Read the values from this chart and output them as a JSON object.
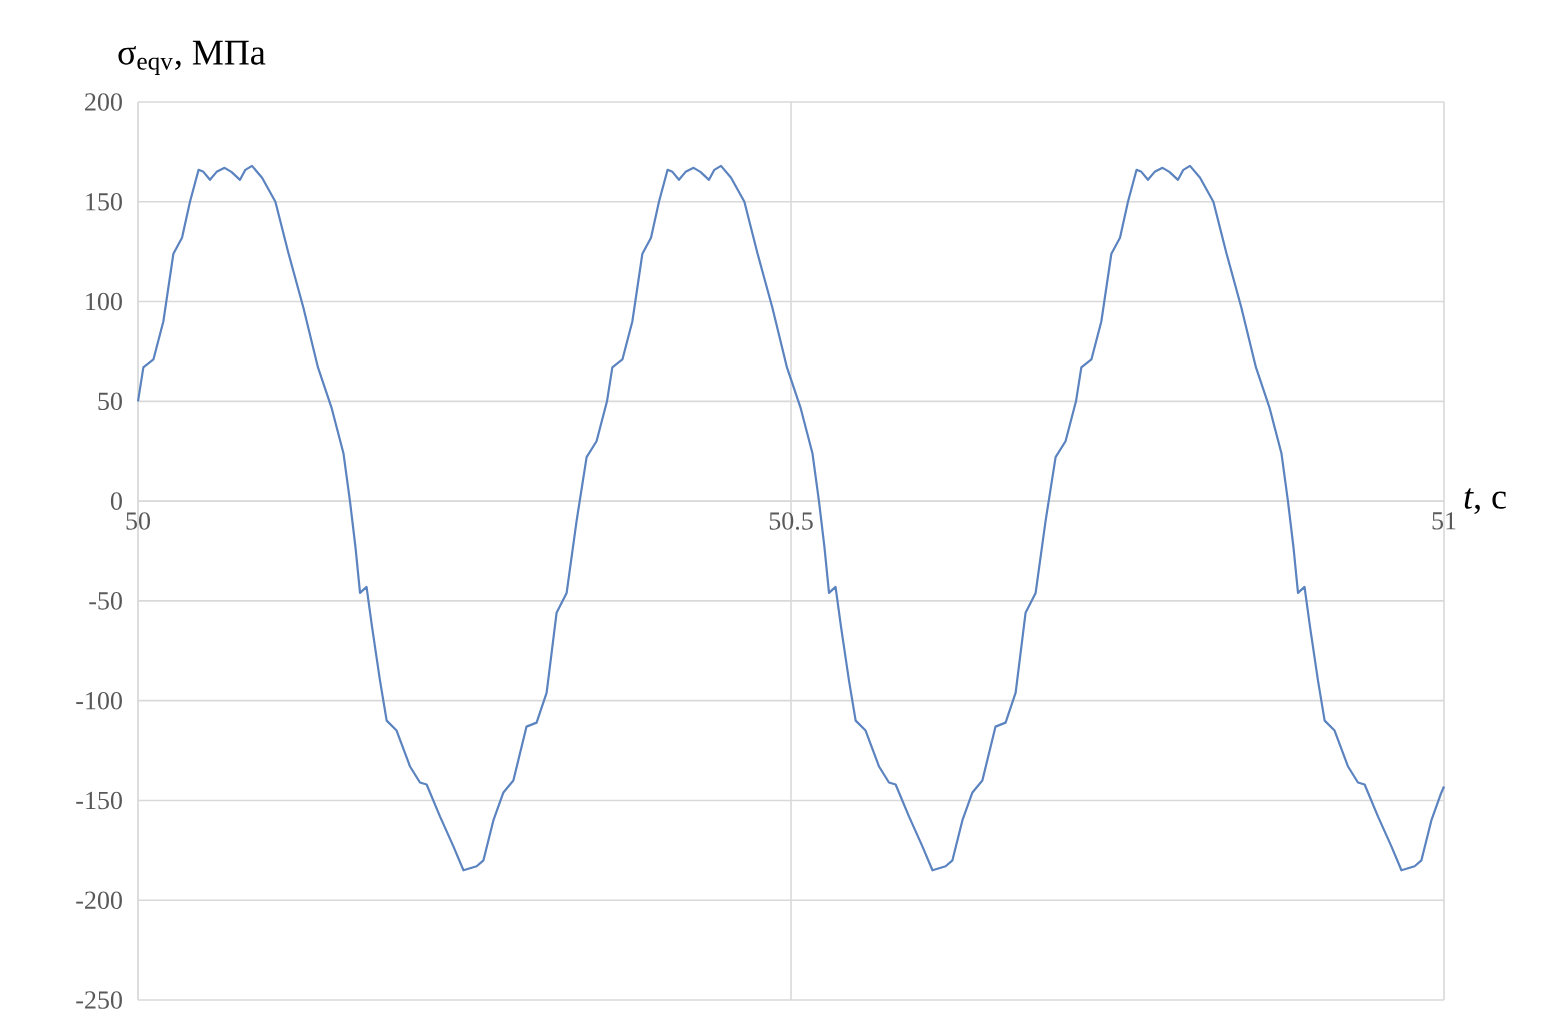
{
  "chart_data": {
    "type": "line",
    "xlabel": "*t*, c",
    "ylabel": "σ$_{eqv}$, МПа",
    "color": "#5b83bf",
    "grid": true,
    "xlim": [
      50,
      51
    ],
    "xticks": [
      50,
      50.5,
      51
    ],
    "ylim": [
      -250,
      200
    ],
    "yticks": [
      -250,
      -200,
      -150,
      -100,
      -50,
      0,
      50,
      100,
      150,
      200
    ],
    "x": [
      50,
      50.0041,
      50.0118,
      50.0194,
      50.0271,
      50.0337,
      50.0398,
      50.0464,
      50.0501,
      50.0551,
      50.0602,
      50.0663,
      50.0715,
      50.0781,
      50.0822,
      50.0873,
      50.095,
      50.1052,
      50.1153,
      50.1266,
      50.1378,
      50.1481,
      50.1573,
      50.1623,
      50.1665,
      50.17,
      50.175,
      50.1792,
      50.1853,
      50.1904,
      50.198,
      50.2083,
      50.2159,
      50.221,
      50.2312,
      50.2415,
      50.2492,
      50.2593,
      50.2645,
      50.2721,
      50.2798,
      50.2874,
      50.2975,
      50.3052,
      50.3129,
      50.3205,
      50.3282,
      50.3358,
      50.3435,
      50.3511,
      50.3591,
      50.3632,
      50.3709,
      50.3785,
      50.3862,
      50.3928,
      50.3989,
      50.4055,
      50.4092,
      50.4142,
      50.4193,
      50.4254,
      50.4306,
      50.4372,
      50.4413,
      50.4464,
      50.4541,
      50.4643,
      50.4744,
      50.4857,
      50.4969,
      50.5072,
      50.5164,
      50.5214,
      50.5256,
      50.5291,
      50.5341,
      50.5383,
      50.5444,
      50.5495,
      50.5571,
      50.5674,
      50.575,
      50.5801,
      50.5903,
      50.6006,
      50.6083,
      50.6184,
      50.6236,
      50.6312,
      50.6389,
      50.6465,
      50.6566,
      50.6643,
      50.672,
      50.6796,
      50.6873,
      50.6949,
      50.7026,
      50.7102,
      50.7182,
      50.7223,
      50.73,
      50.7376,
      50.7453,
      50.7519,
      50.758,
      50.7646,
      50.7683,
      50.7733,
      50.7784,
      50.7845,
      50.7897,
      50.7963,
      50.8004,
      50.8055,
      50.8132,
      50.8234,
      50.8335,
      50.8448,
      50.856,
      50.8663,
      50.8755,
      50.8805,
      50.8847,
      50.8882,
      50.8932,
      50.8974,
      50.9035,
      50.9086,
      50.9162,
      50.9265,
      50.9341,
      50.9392,
      50.9494,
      50.9597,
      50.9674,
      50.9775,
      50.9827,
      50.9903,
      50.998,
      51
    ],
    "values": [
      50,
      67,
      71,
      90,
      124,
      132,
      150,
      166,
      165,
      161,
      165,
      167,
      165,
      161,
      166,
      168,
      162,
      150,
      124,
      97,
      67,
      47,
      24,
      0,
      -23,
      -46,
      -43,
      -63,
      -90,
      -110,
      -115,
      -133,
      -141,
      -142,
      -158,
      -173,
      -185,
      -183,
      -180,
      -160,
      -146,
      -140,
      -113,
      -111,
      -96,
      -56,
      -46,
      -10,
      22,
      30,
      50,
      67,
      71,
      90,
      124,
      132,
      150,
      166,
      165,
      161,
      165,
      167,
      165,
      161,
      166,
      168,
      162,
      150,
      124,
      97,
      67,
      47,
      24,
      0,
      -23,
      -46,
      -43,
      -63,
      -90,
      -110,
      -115,
      -133,
      -141,
      -142,
      -158,
      -173,
      -185,
      -183,
      -180,
      -160,
      -146,
      -140,
      -113,
      -111,
      -96,
      -56,
      -46,
      -10,
      22,
      30,
      50,
      67,
      71,
      90,
      124,
      132,
      150,
      166,
      165,
      161,
      165,
      167,
      165,
      161,
      166,
      168,
      162,
      150,
      124,
      97,
      67,
      47,
      24,
      0,
      -23,
      -46,
      -43,
      -63,
      -90,
      -110,
      -115,
      -133,
      -141,
      -142,
      -158,
      -173,
      -185,
      -183,
      -180,
      -160,
      -146,
      -143
    ]
  }
}
